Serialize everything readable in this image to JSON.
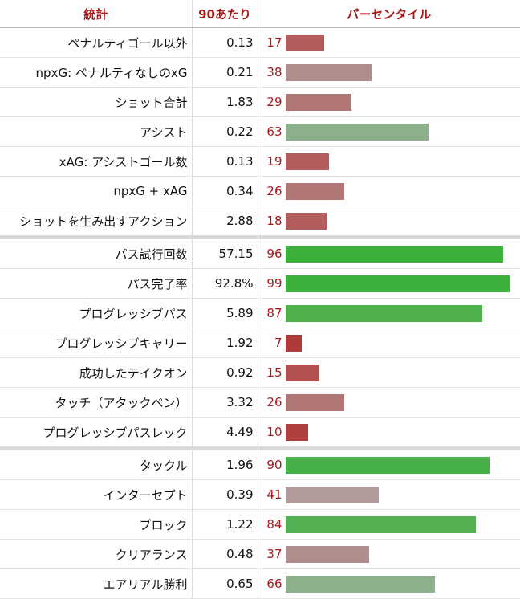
{
  "header": {
    "stat": "統計",
    "per90": "90あたり",
    "percentile": "パーセンタイル"
  },
  "colors": {
    "red": "#b35c5e",
    "mauve": "#b08e8e",
    "sage": "#8bb08b",
    "green": "#3bb03b"
  },
  "rows": [
    {
      "label": "ペナルティゴール以外",
      "value": "0.13",
      "pct": "17",
      "pct_value": 17,
      "color": "#b35c5e",
      "group_start": false
    },
    {
      "label": "npxG: ペナルティなしのxG",
      "value": "0.21",
      "pct": "38",
      "pct_value": 38,
      "color": "#b08e8e",
      "group_start": false
    },
    {
      "label": "ショット合計",
      "value": "1.83",
      "pct": "29",
      "pct_value": 29,
      "color": "#b07575",
      "group_start": false
    },
    {
      "label": "アシスト",
      "value": "0.22",
      "pct": "63",
      "pct_value": 63,
      "color": "#8bb08b",
      "group_start": false
    },
    {
      "label": "xAG: アシストゴール数",
      "value": "0.13",
      "pct": "19",
      "pct_value": 19,
      "color": "#b35c5e",
      "group_start": false
    },
    {
      "label": "npxG + xAG",
      "value": "0.34",
      "pct": "26",
      "pct_value": 26,
      "color": "#b07575",
      "group_start": false
    },
    {
      "label": "ショットを生み出すアクション",
      "value": "2.88",
      "pct": "18",
      "pct_value": 18,
      "color": "#b35c5e",
      "group_start": false
    },
    {
      "label": "パス試行回数",
      "value": "57.15",
      "pct": "96",
      "pct_value": 96,
      "color": "#3bb03b",
      "group_start": true
    },
    {
      "label": "パス完了率",
      "value": "92.8%",
      "pct": "99",
      "pct_value": 99,
      "color": "#3bb03b",
      "group_start": false
    },
    {
      "label": "プログレッシブパス",
      "value": "5.89",
      "pct": "87",
      "pct_value": 87,
      "color": "#4db04d",
      "group_start": false
    },
    {
      "label": "プログレッシブキャリー",
      "value": "1.92",
      "pct": "7",
      "pct_value": 7,
      "color": "#b03a3a",
      "group_start": false
    },
    {
      "label": "成功したテイクオン",
      "value": "0.92",
      "pct": "15",
      "pct_value": 15,
      "color": "#b35050",
      "group_start": false
    },
    {
      "label": "タッチ（アタックペン）",
      "value": "3.32",
      "pct": "26",
      "pct_value": 26,
      "color": "#b07575",
      "group_start": false
    },
    {
      "label": "プログレッシブパスレック",
      "value": "4.49",
      "pct": "10",
      "pct_value": 10,
      "color": "#b03f3f",
      "group_start": false
    },
    {
      "label": "タックル",
      "value": "1.96",
      "pct": "90",
      "pct_value": 90,
      "color": "#46b046",
      "group_start": true
    },
    {
      "label": "インターセプト",
      "value": "0.39",
      "pct": "41",
      "pct_value": 41,
      "color": "#b09a9a",
      "group_start": false
    },
    {
      "label": "ブロック",
      "value": "1.22",
      "pct": "84",
      "pct_value": 84,
      "color": "#52b052",
      "group_start": false
    },
    {
      "label": "クリアランス",
      "value": "0.48",
      "pct": "37",
      "pct_value": 37,
      "color": "#b08e8e",
      "group_start": false
    },
    {
      "label": "エアリアル勝利",
      "value": "0.65",
      "pct": "66",
      "pct_value": 66,
      "color": "#8bb08b",
      "group_start": false
    }
  ]
}
